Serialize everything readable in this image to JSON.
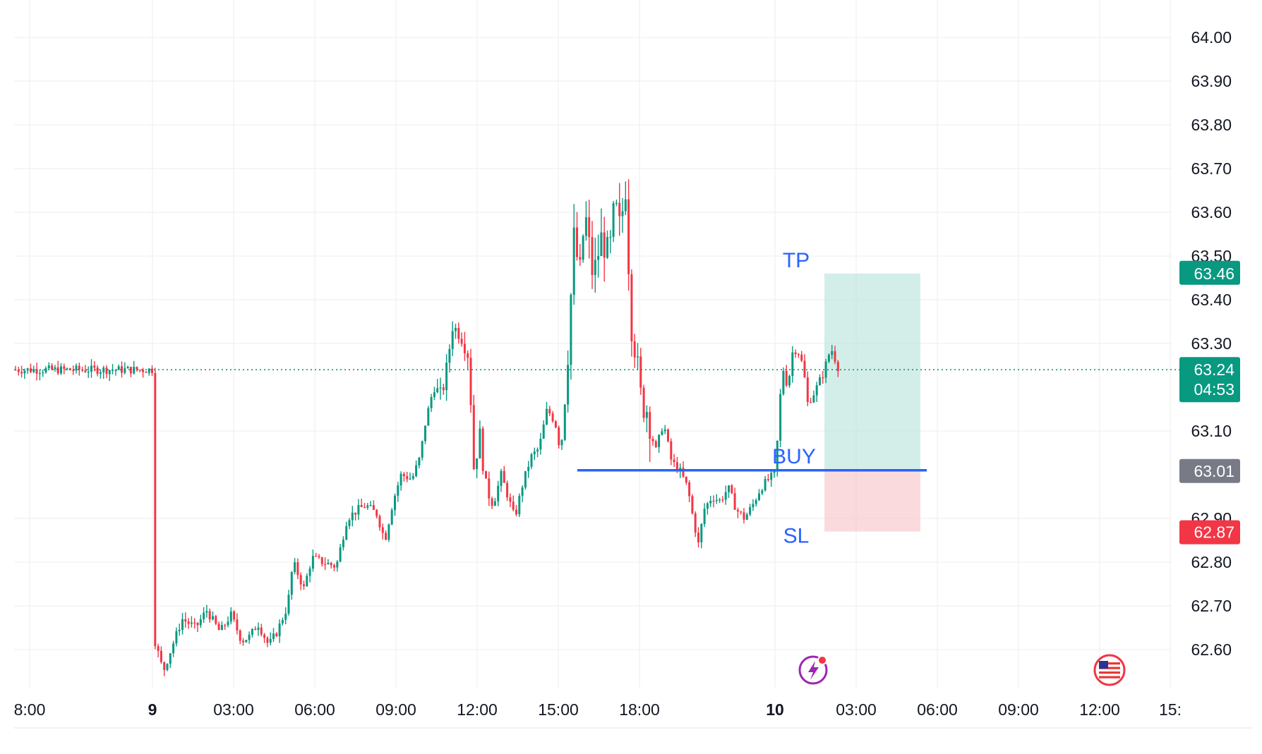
{
  "chart_data": {
    "type": "candlestick",
    "x_ticks": [
      "8:00",
      "9",
      "03:00",
      "06:00",
      "09:00",
      "12:00",
      "15:00",
      "18:00",
      "10",
      "03:00",
      "06:00",
      "09:00",
      "12:00",
      "15:"
    ],
    "y_ticks": [
      "64.00",
      "63.90",
      "63.80",
      "63.70",
      "63.60",
      "63.50",
      "63.40",
      "63.30",
      "63.10",
      "62.90",
      "62.80",
      "62.70",
      "62.60"
    ],
    "ylim": [
      62.52,
      64.08
    ],
    "current_price": {
      "value": "63.24",
      "countdown": "04:53"
    },
    "position": {
      "tp": {
        "label": "TP",
        "price": "63.46"
      },
      "entry": {
        "label": "BUY",
        "price": "63.01"
      },
      "sl": {
        "label": "SL",
        "price": "62.87"
      }
    },
    "path_points": [
      [
        0,
        62.64
      ],
      [
        0.4,
        62.55
      ],
      [
        0.8,
        62.62
      ],
      [
        1.1,
        62.67
      ],
      [
        1.6,
        62.65
      ],
      [
        2,
        62.69
      ],
      [
        2.5,
        62.64
      ],
      [
        2.9,
        62.68
      ],
      [
        3.3,
        62.62
      ],
      [
        3.6,
        62.63
      ],
      [
        3.9,
        62.66
      ],
      [
        4.3,
        62.61
      ],
      [
        4.6,
        62.64
      ],
      [
        5,
        62.7
      ],
      [
        5.2,
        62.8
      ],
      [
        5.6,
        62.74
      ],
      [
        5.9,
        62.81
      ],
      [
        6.3,
        62.8
      ],
      [
        6.8,
        62.79
      ],
      [
        7.2,
        62.9
      ],
      [
        7.6,
        62.92
      ],
      [
        7.9,
        62.93
      ],
      [
        8.3,
        62.91
      ],
      [
        8.6,
        62.85
      ],
      [
        8.9,
        62.94
      ],
      [
        9.2,
        63.0
      ],
      [
        9.6,
        62.99
      ],
      [
        9.9,
        63.04
      ],
      [
        10.1,
        63.12
      ],
      [
        10.4,
        63.2
      ],
      [
        10.7,
        63.18
      ],
      [
        10.9,
        63.25
      ],
      [
        11.1,
        63.34
      ],
      [
        11.4,
        63.32
      ],
      [
        11.7,
        63.27
      ],
      [
        11.9,
        63.0
      ],
      [
        12.1,
        63.1
      ],
      [
        12.3,
        62.98
      ],
      [
        12.6,
        62.93
      ],
      [
        12.9,
        63.0
      ],
      [
        13.2,
        62.94
      ],
      [
        13.4,
        62.9
      ],
      [
        13.7,
        62.98
      ],
      [
        14,
        63.04
      ],
      [
        14.3,
        63.06
      ],
      [
        14.6,
        63.15
      ],
      [
        14.9,
        63.12
      ],
      [
        15.1,
        63.05
      ],
      [
        15.3,
        63.2
      ],
      [
        15.6,
        63.55
      ],
      [
        15.8,
        63.45
      ],
      [
        16,
        63.6
      ],
      [
        16.3,
        63.45
      ],
      [
        16.6,
        63.54
      ],
      [
        16.9,
        63.5
      ],
      [
        17.1,
        63.62
      ],
      [
        17.3,
        63.56
      ],
      [
        17.5,
        63.66
      ],
      [
        17.7,
        63.35
      ],
      [
        17.9,
        63.27
      ],
      [
        18.1,
        63.16
      ],
      [
        18.3,
        63.15
      ],
      [
        18.6,
        63.05
      ],
      [
        18.9,
        63.12
      ],
      [
        19.2,
        63.03
      ],
      [
        19.5,
        63.01
      ],
      [
        19.8,
        62.97
      ],
      [
        20,
        62.9
      ],
      [
        20.2,
        62.84
      ],
      [
        20.4,
        62.92
      ],
      [
        20.7,
        62.95
      ],
      [
        21,
        62.94
      ],
      [
        21.3,
        62.97
      ],
      [
        21.6,
        62.92
      ],
      [
        21.9,
        62.9
      ],
      [
        22.2,
        62.93
      ],
      [
        22.5,
        62.97
      ],
      [
        22.8,
        62.99
      ],
      [
        23,
        63.0
      ],
      [
        23.1,
        63.06
      ],
      [
        23.3,
        63.25
      ],
      [
        23.5,
        63.2
      ],
      [
        23.7,
        63.29
      ],
      [
        23.9,
        63.28
      ],
      [
        24.1,
        63.24
      ],
      [
        24.2,
        63.16
      ],
      [
        24.5,
        63.19
      ],
      [
        24.8,
        63.23
      ],
      [
        25.1,
        63.29
      ],
      [
        25.4,
        63.24
      ]
    ]
  }
}
